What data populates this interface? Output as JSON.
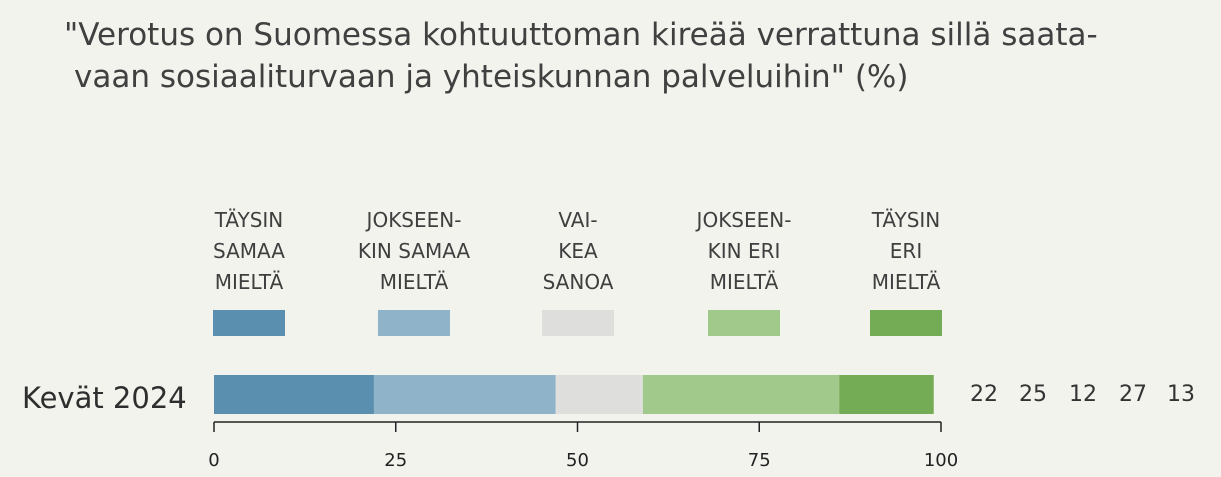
{
  "title_lines": [
    "\"Verotus on Suomessa kohtuuttoman kireää verrattuna sillä saata-",
    "vaan sosiaaliturvaan ja yhteiskunnan palveluihin\" (%)"
  ],
  "legend": [
    {
      "lines": [
        "TÄYSIN",
        "SAMAA",
        "MIELTÄ"
      ],
      "color": "#5a8fb0"
    },
    {
      "lines": [
        "JOKSEEN-",
        "KIN SAMAA",
        "MIELTÄ"
      ],
      "color": "#8fb3c8"
    },
    {
      "lines": [
        "VAI-",
        "KEA",
        "SANOA"
      ],
      "color": "#dededc"
    },
    {
      "lines": [
        "JOKSEEN-",
        "KIN ERI",
        "MIELTÄ"
      ],
      "color": "#a1c98b"
    },
    {
      "lines": [
        "TÄYSIN",
        "ERI",
        "MIELTÄ"
      ],
      "color": "#74ac55"
    }
  ],
  "chart_data": {
    "type": "bar",
    "orientation": "horizontal-stacked",
    "categories": [
      "Kevät 2024"
    ],
    "series": [
      {
        "name": "TÄYSIN SAMAA MIELTÄ",
        "values": [
          22
        ],
        "color": "#5a8fb0"
      },
      {
        "name": "JOKSEENKIN SAMAA MIELTÄ",
        "values": [
          25
        ],
        "color": "#8fb3c8"
      },
      {
        "name": "VAIKEA SANOA",
        "values": [
          12
        ],
        "color": "#dededc"
      },
      {
        "name": "JOKSEENKIN ERI MIELTÄ",
        "values": [
          27
        ],
        "color": "#a1c98b"
      },
      {
        "name": "TÄYSIN ERI MIELTÄ",
        "values": [
          13
        ],
        "color": "#74ac55"
      }
    ],
    "value_labels": [
      "22",
      "25",
      "12",
      "27",
      "13"
    ],
    "xlim": [
      0,
      100
    ],
    "xticks": [
      0,
      25,
      50,
      75,
      100
    ],
    "xtick_labels": [
      "0",
      "25",
      "50",
      "75",
      "100"
    ],
    "grid": false,
    "legend_position": "top"
  }
}
